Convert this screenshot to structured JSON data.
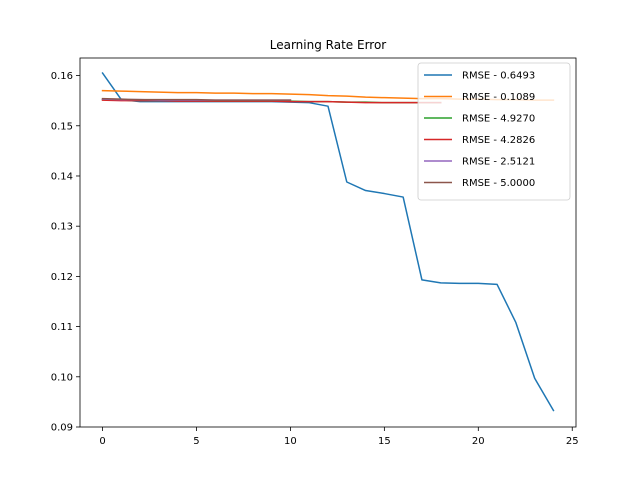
{
  "chart_data": {
    "type": "line",
    "title": "Learning Rate Error",
    "xlabel": "",
    "ylabel": "",
    "xlim": [
      -1.2,
      25.2
    ],
    "ylim": [
      0.09,
      0.1635
    ],
    "xticks": [
      0,
      5,
      10,
      15,
      20,
      25
    ],
    "yticks": [
      0.09,
      0.1,
      0.11,
      0.12,
      0.13,
      0.14,
      0.15,
      0.16
    ],
    "xtick_labels": [
      "0",
      "5",
      "10",
      "15",
      "20",
      "25"
    ],
    "ytick_labels": [
      "0.09",
      "0.10",
      "0.11",
      "0.12",
      "0.13",
      "0.14",
      "0.15",
      "0.16"
    ],
    "grid": false,
    "legend_position": "top-right",
    "series": [
      {
        "name": "RMSE - 0.6493",
        "color": "#1f77b4",
        "x": [
          0,
          1,
          2,
          3,
          4,
          5,
          6,
          7,
          8,
          9,
          10,
          11,
          12,
          13,
          14,
          15,
          16,
          17,
          18,
          19,
          20,
          21,
          22,
          23,
          24
        ],
        "values": [
          0.1605,
          0.1552,
          0.1548,
          0.1548,
          0.1548,
          0.1548,
          0.1548,
          0.1548,
          0.1548,
          0.1548,
          0.1547,
          0.1546,
          0.1539,
          0.1388,
          0.1371,
          0.1365,
          0.1358,
          0.1193,
          0.1187,
          0.1186,
          0.1186,
          0.1184,
          0.1108,
          0.0997,
          0.0933
        ]
      },
      {
        "name": "RMSE - 0.1089",
        "color": "#ff7f0e",
        "x": [
          0,
          1,
          2,
          3,
          4,
          5,
          6,
          7,
          8,
          9,
          10,
          11,
          12,
          13,
          14,
          15,
          16,
          17,
          18,
          19,
          20,
          21,
          22,
          23,
          24
        ],
        "values": [
          0.157,
          0.1569,
          0.1568,
          0.1567,
          0.1566,
          0.1566,
          0.1565,
          0.1565,
          0.1564,
          0.1564,
          0.1563,
          0.1562,
          0.156,
          0.1559,
          0.1557,
          0.1556,
          0.1555,
          0.1554,
          0.1554,
          0.1553,
          0.1553,
          0.1552,
          0.1552,
          0.1551,
          0.1551
        ]
      },
      {
        "name": "RMSE - 4.9270",
        "color": "#2ca02c",
        "x": [
          0,
          1,
          2,
          3,
          4,
          5,
          6,
          7,
          8,
          9,
          10,
          11,
          12,
          13,
          14,
          15,
          16,
          17,
          18
        ],
        "values": [
          0.1552,
          0.1551,
          0.155,
          0.155,
          0.155,
          0.155,
          0.1549,
          0.1549,
          0.1549,
          0.1549,
          0.1549,
          0.1548,
          0.1548,
          0.1547,
          0.1547,
          0.1546,
          0.1546,
          0.1546,
          0.1546
        ]
      },
      {
        "name": "RMSE - 4.2826",
        "color": "#d62728",
        "x": [
          0,
          1,
          2,
          3,
          4,
          5,
          6,
          7,
          8,
          9,
          10,
          11,
          12,
          13,
          14,
          15,
          16,
          17,
          18
        ],
        "values": [
          0.1551,
          0.155,
          0.155,
          0.155,
          0.1549,
          0.1549,
          0.1549,
          0.1549,
          0.1549,
          0.1549,
          0.1548,
          0.1548,
          0.1548,
          0.1547,
          0.1546,
          0.1546,
          0.1546,
          0.1546,
          0.1546
        ]
      },
      {
        "name": "RMSE - 2.5121",
        "color": "#9467bd",
        "x": [
          0,
          1,
          2,
          3,
          4,
          5,
          6,
          7,
          8,
          9,
          10
        ],
        "values": [
          0.1553,
          0.1552,
          0.1552,
          0.1551,
          0.1551,
          0.1551,
          0.1551,
          0.1551,
          0.1551,
          0.1551,
          0.1551
        ]
      },
      {
        "name": "RMSE - 5.0000",
        "color": "#8c564b",
        "x": [
          0,
          1,
          2,
          3,
          4,
          5,
          6,
          7,
          8,
          9,
          10
        ],
        "values": [
          0.1554,
          0.1553,
          0.1552,
          0.1552,
          0.1552,
          0.1552,
          0.1551,
          0.1551,
          0.1551,
          0.1551,
          0.1551
        ]
      }
    ]
  }
}
